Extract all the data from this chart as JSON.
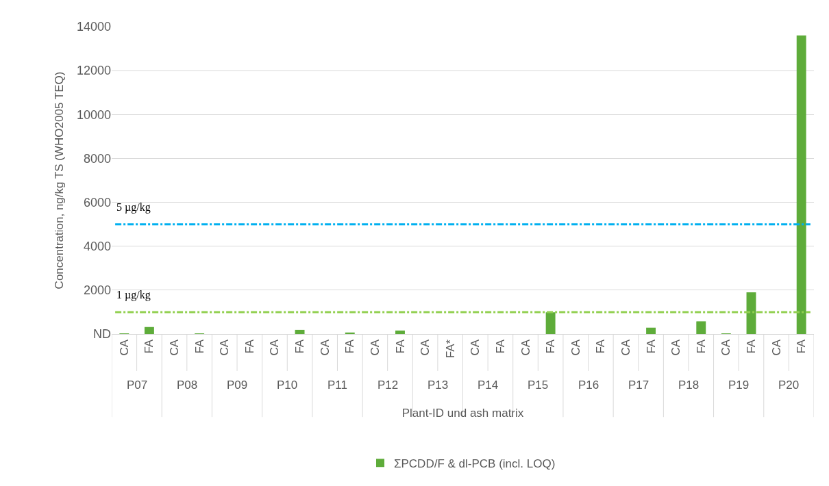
{
  "chart_data": {
    "type": "bar",
    "xlabel": "Plant-ID und ash matrix",
    "ylabel": "Concentration, ng/kg TS (WHO2005 TEQ)",
    "categories": [
      "CA",
      "FA",
      "CA",
      "FA",
      "CA",
      "FA",
      "CA",
      "FA",
      "CA",
      "FA",
      "CA",
      "FA",
      "CA",
      "FA*",
      "CA",
      "FA",
      "CA",
      "FA",
      "CA",
      "FA",
      "CA",
      "FA",
      "CA",
      "FA",
      "CA",
      "FA",
      "CA",
      "FA"
    ],
    "series": [
      {
        "name": "ΣPCDD/F & dl-PCB (incl. LOQ)",
        "color": "#5eac3a",
        "values": [
          30,
          320,
          null,
          30,
          null,
          null,
          null,
          190,
          null,
          70,
          null,
          160,
          null,
          null,
          null,
          null,
          null,
          990,
          null,
          null,
          null,
          290,
          null,
          580,
          30,
          1900,
          null,
          13600
        ]
      }
    ],
    "annotations": [
      "P07",
      "P08",
      "P09",
      "P10",
      "P11",
      "P12",
      "P13",
      "P14",
      "P15",
      "P16",
      "P17",
      "P18",
      "P19",
      "P20"
    ],
    "ylim": [
      0,
      14000
    ],
    "yticks": [
      {
        "value": 0,
        "label": "ND"
      },
      2000,
      4000,
      6000,
      8000,
      10000,
      12000,
      14000
    ],
    "ref_lines": [
      {
        "axis": "y",
        "value": 5000,
        "label": "5 µg/kg",
        "color": "#00b0f0",
        "line_style": "dashdot"
      },
      {
        "axis": "y",
        "value": 1000,
        "label": "1 µg/kg",
        "color": "#92d050",
        "line_style": "dashdot"
      }
    ],
    "grid": "y",
    "legend": "bottom"
  }
}
